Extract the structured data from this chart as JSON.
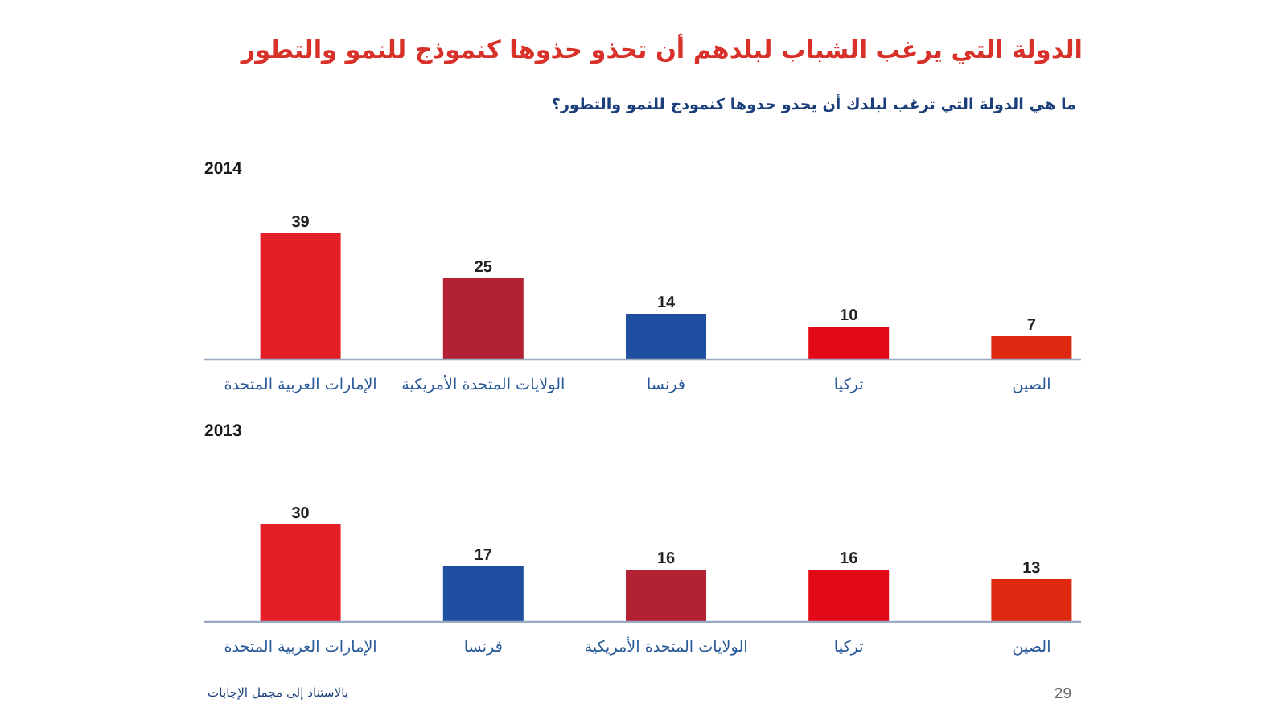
{
  "chart_data": [
    {
      "type": "other",
      "title": "الدولة التي يرغب الشباب لبلدهم أن تحذو حذوها كنموذج للنمو والتطور",
      "subtitle": "ما هي الدولة التي ترغب لبلدك أن يحذو حذوها كنموذج للنمو والتطور؟"
    },
    {
      "type": "bar",
      "title": "2014",
      "categories": [
        "الإمارات العربية المتحدة",
        "الولايات المتحدة الأمريكية",
        "فرنسا",
        "تركيا",
        "الصين"
      ],
      "values": [
        39,
        25,
        14,
        10,
        7
      ],
      "colors": [
        "#e31e26",
        "#b22234",
        "#1f4fa0",
        "#e30a17",
        "#de2910"
      ],
      "data_labels": true,
      "tick_labels": "x"
    },
    {
      "type": "bar",
      "title": "2013",
      "categories": [
        "الإمارات العربية المتحدة",
        "فرنسا",
        "الولايات المتحدة الأمريكية",
        "تركيا",
        "الصين"
      ],
      "values": [
        30,
        17,
        16,
        16,
        13
      ],
      "colors": [
        "#e31e26",
        "#1f4fa0",
        "#b22234",
        "#e30a17",
        "#de2910"
      ],
      "data_labels": true,
      "tick_labels": "x",
      "annotations": [
        "بالاستناد إلى مجمل الإجابات",
        "29"
      ]
    }
  ]
}
